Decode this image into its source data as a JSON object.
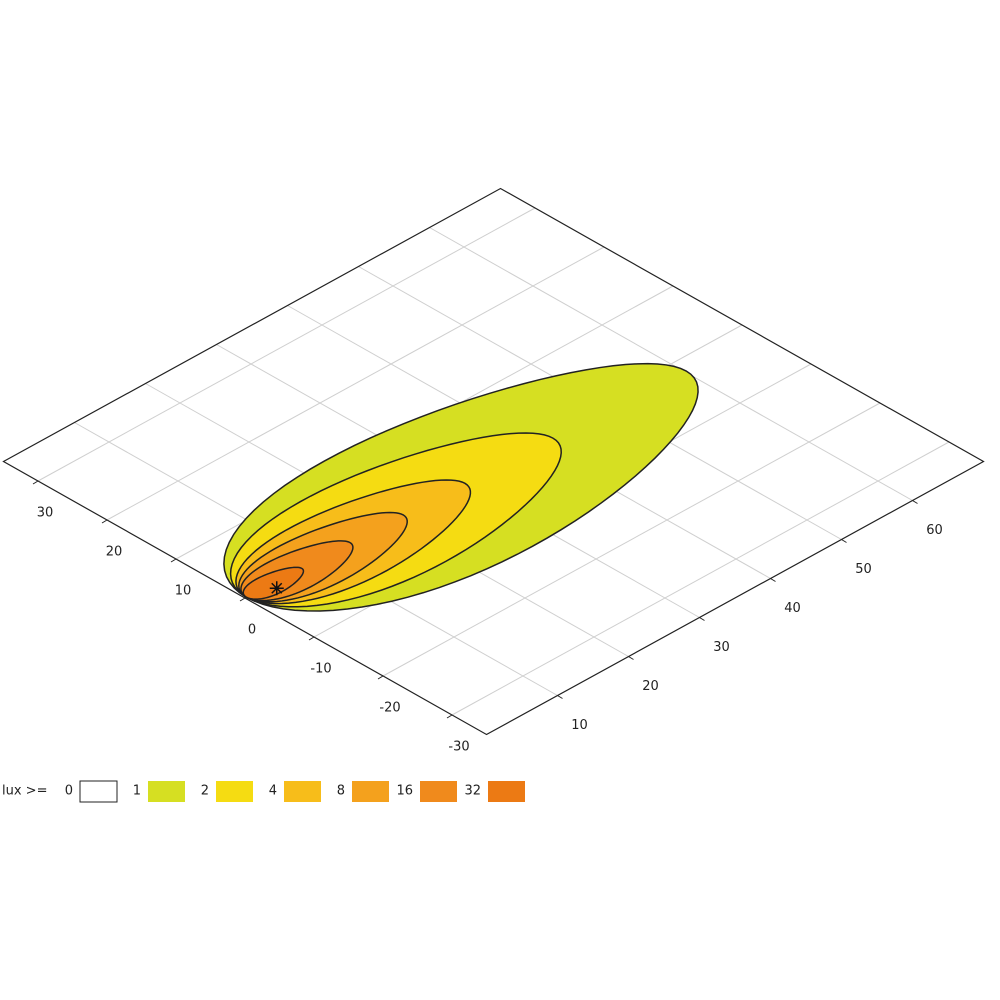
{
  "chart_data": {
    "type": "contour",
    "legend_title": "lux >=",
    "levels": [
      0,
      1,
      2,
      4,
      8,
      16,
      32
    ],
    "colors": [
      "#ffffff",
      "#d6df22",
      "#f5dc12",
      "#f7bd1a",
      "#f4a11d",
      "#f08a1c",
      "#ec7a14"
    ],
    "xlim": [
      0,
      70
    ],
    "ylim": [
      -35,
      35
    ],
    "xticks": [
      10,
      20,
      30,
      40,
      50,
      60
    ],
    "yticks": [
      30,
      20,
      10,
      0,
      -10,
      -20,
      -30
    ],
    "grid": true
  }
}
